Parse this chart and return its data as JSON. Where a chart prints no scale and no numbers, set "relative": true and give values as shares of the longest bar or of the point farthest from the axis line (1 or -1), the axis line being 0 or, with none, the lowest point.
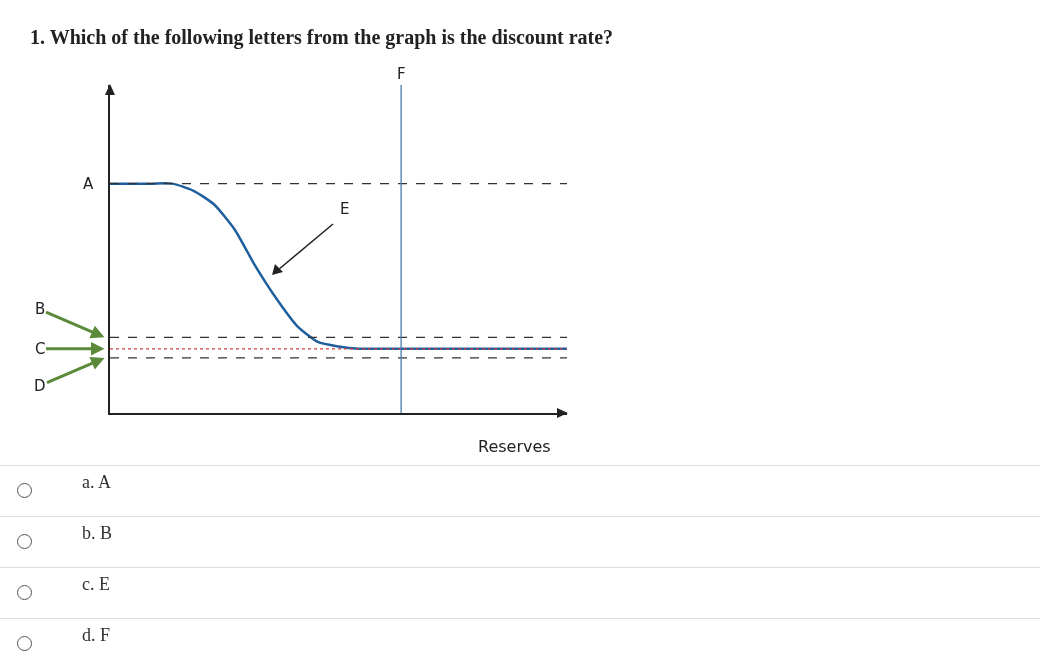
{
  "chart_data": {
    "type": "line",
    "title": "1. Which of the following letters from the graph is the discount rate?",
    "xlabel": "Reserves",
    "relative": true,
    "color": "#1f5f9e",
    "categories": [
      null,
      null,
      null,
      null,
      null,
      null,
      null,
      null,
      null,
      null,
      null,
      null,
      null,
      null,
      null,
      null,
      null,
      null,
      null,
      null,
      null,
      null,
      null
    ],
    "values": [
      1,
      1,
      1,
      1,
      0.97,
      0.91,
      0.8,
      0.64,
      0.5,
      0.38,
      0.31,
      0.29,
      0.28,
      0.28,
      0.28,
      0.28,
      0.28,
      0.28,
      0.28,
      0.28,
      0.28,
      0.28,
      0.28
    ],
    "ref_lines": [
      {
        "axis": "y",
        "value": 1,
        "label": "A",
        "color": "#333333",
        "line_style": "dashed"
      },
      {
        "axis": "y",
        "value": 0.33,
        "label": "B",
        "color": "#333333",
        "line_style": "dashed"
      },
      {
        "axis": "y",
        "value": 0.28,
        "label": "C",
        "color": "#d04040",
        "line_style": "dotted"
      },
      {
        "axis": "y",
        "value": 0.24,
        "label": "D",
        "color": "#333333",
        "line_style": "dashed"
      }
    ],
    "annotations": [
      "E",
      "F",
      "a. A",
      "b. B",
      "c. E",
      "d. F"
    ]
  }
}
